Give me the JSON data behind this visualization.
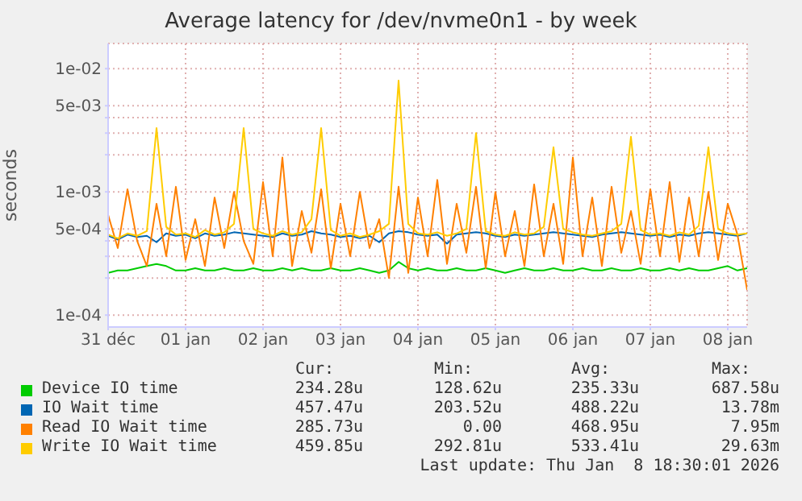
{
  "chart_data": {
    "type": "line",
    "title": "Average latency for /dev/nvme0n1 - by week",
    "ylabel": "seconds",
    "x": [
      "2025-12-31T12:00",
      "2025-12-31T15:00",
      "2025-12-31T18:00",
      "2025-12-31T21:00",
      "2026-01-01T00:00",
      "2026-01-01T03:00",
      "2026-01-01T06:00",
      "2026-01-01T09:00",
      "2026-01-01T12:00",
      "2026-01-01T15:00",
      "2026-01-01T18:00",
      "2026-01-01T21:00",
      "2026-01-02T00:00",
      "2026-01-02T03:00",
      "2026-01-02T06:00",
      "2026-01-02T09:00",
      "2026-01-02T12:00",
      "2026-01-02T15:00",
      "2026-01-02T18:00",
      "2026-01-02T21:00",
      "2026-01-03T00:00",
      "2026-01-03T03:00",
      "2026-01-03T06:00",
      "2026-01-03T09:00",
      "2026-01-03T12:00",
      "2026-01-03T15:00",
      "2026-01-03T18:00",
      "2026-01-03T21:00",
      "2026-01-04T00:00",
      "2026-01-04T03:00",
      "2026-01-04T06:00",
      "2026-01-04T09:00",
      "2026-01-04T12:00",
      "2026-01-04T15:00",
      "2026-01-04T18:00",
      "2026-01-04T21:00",
      "2026-01-05T00:00",
      "2026-01-05T03:00",
      "2026-01-05T06:00",
      "2026-01-05T09:00",
      "2026-01-05T12:00",
      "2026-01-05T15:00",
      "2026-01-05T18:00",
      "2026-01-05T21:00",
      "2026-01-06T00:00",
      "2026-01-06T03:00",
      "2026-01-06T06:00",
      "2026-01-06T09:00",
      "2026-01-06T12:00",
      "2026-01-06T15:00",
      "2026-01-06T18:00",
      "2026-01-06T21:00",
      "2026-01-07T00:00",
      "2026-01-07T03:00",
      "2026-01-07T06:00",
      "2026-01-07T09:00",
      "2026-01-07T12:00",
      "2026-01-07T15:00",
      "2026-01-07T18:00",
      "2026-01-07T21:00",
      "2026-01-08T00:00",
      "2026-01-08T03:00",
      "2026-01-08T06:00",
      "2026-01-08T09:00",
      "2026-01-08T12:00",
      "2026-01-08T15:00",
      "2026-01-08T18:00"
    ],
    "series": [
      {
        "name": "Device IO time",
        "color": "#00cc00",
        "values": [
          0.00022,
          0.00023,
          0.00023,
          0.00024,
          0.00025,
          0.00026,
          0.00025,
          0.00023,
          0.00023,
          0.00024,
          0.00023,
          0.00023,
          0.00024,
          0.00023,
          0.00023,
          0.00024,
          0.00023,
          0.00023,
          0.00024,
          0.00023,
          0.00024,
          0.00023,
          0.00023,
          0.00024,
          0.00023,
          0.00023,
          0.00024,
          0.00023,
          0.00022,
          0.00023,
          0.00027,
          0.00024,
          0.00023,
          0.00024,
          0.00023,
          0.00023,
          0.00024,
          0.00023,
          0.00023,
          0.00024,
          0.00023,
          0.00022,
          0.00023,
          0.00024,
          0.00023,
          0.00023,
          0.00024,
          0.00023,
          0.00023,
          0.00024,
          0.00023,
          0.00023,
          0.00024,
          0.00023,
          0.00023,
          0.00024,
          0.00023,
          0.00023,
          0.00024,
          0.00023,
          0.00024,
          0.00023,
          0.00023,
          0.00024,
          0.00025,
          0.00023,
          0.00024
        ]
      },
      {
        "name": "IO Wait time",
        "color": "#0066b3",
        "values": [
          0.00044,
          0.00041,
          0.00045,
          0.00043,
          0.00044,
          0.00039,
          0.00046,
          0.00044,
          0.00045,
          0.00042,
          0.00046,
          0.00044,
          0.00045,
          0.00047,
          0.00046,
          0.00045,
          0.00044,
          0.00043,
          0.00046,
          0.00044,
          0.00045,
          0.00048,
          0.00046,
          0.00045,
          0.00043,
          0.00044,
          0.00042,
          0.00044,
          0.00039,
          0.00046,
          0.00048,
          0.00047,
          0.00045,
          0.00044,
          0.00045,
          0.00038,
          0.00045,
          0.00046,
          0.00047,
          0.00046,
          0.00044,
          0.00043,
          0.00045,
          0.00044,
          0.00045,
          0.00046,
          0.00047,
          0.00046,
          0.00045,
          0.00044,
          0.00043,
          0.00045,
          0.00046,
          0.00047,
          0.00046,
          0.00045,
          0.00044,
          0.00045,
          0.00043,
          0.00045,
          0.00044,
          0.00046,
          0.00047,
          0.00046,
          0.00045,
          0.00044,
          0.00046
        ]
      },
      {
        "name": "Read IO Wait time",
        "color": "#ff8000",
        "values": [
          0.00065,
          0.00035,
          0.00105,
          0.0004,
          0.00025,
          0.0008,
          0.0003,
          0.0011,
          0.00028,
          0.0006,
          0.00025,
          0.0009,
          0.00035,
          0.001,
          0.0004,
          0.00026,
          0.0012,
          0.0003,
          0.0019,
          0.00025,
          0.0007,
          0.00032,
          0.00105,
          0.00024,
          0.0008,
          0.0003,
          0.001,
          0.00035,
          0.0006,
          0.0002,
          0.0011,
          0.00022,
          0.0009,
          0.0003,
          0.00125,
          0.00026,
          0.0008,
          0.00032,
          0.0011,
          0.00024,
          0.001,
          0.0003,
          0.0007,
          0.00025,
          0.00115,
          0.0003,
          0.0008,
          0.00026,
          0.0019,
          0.0003,
          0.0009,
          0.00025,
          0.0011,
          0.00032,
          0.0007,
          0.00026,
          0.00105,
          0.0003,
          0.0012,
          0.00027,
          0.0009,
          0.0003,
          0.001,
          0.00028,
          0.0008,
          0.00045,
          0.00016
        ]
      },
      {
        "name": "Write IO Wait time",
        "color": "#ffcc00",
        "values": [
          0.00045,
          0.00042,
          0.00046,
          0.00044,
          0.00048,
          0.0033,
          0.00052,
          0.00045,
          0.00046,
          0.00043,
          0.00049,
          0.00045,
          0.00047,
          0.00055,
          0.0033,
          0.0005,
          0.00046,
          0.00044,
          0.00048,
          0.00045,
          0.00047,
          0.0006,
          0.0033,
          0.00049,
          0.00044,
          0.00046,
          0.00043,
          0.00045,
          0.00048,
          0.00055,
          0.008,
          0.00055,
          0.00046,
          0.00045,
          0.00047,
          0.00044,
          0.00046,
          0.0005,
          0.003,
          0.00048,
          0.00045,
          0.00044,
          0.00047,
          0.00045,
          0.00046,
          0.00052,
          0.0023,
          0.0005,
          0.00047,
          0.00045,
          0.00044,
          0.00046,
          0.00048,
          0.00055,
          0.0028,
          0.00049,
          0.00045,
          0.00046,
          0.00044,
          0.00047,
          0.00045,
          0.00053,
          0.0023,
          0.0005,
          0.00046,
          0.00045,
          0.00046
        ]
      }
    ],
    "log": true,
    "ylim": [
      8e-05,
      0.016
    ],
    "yticks": [
      {
        "value": 0.0001,
        "label": "1e-04"
      },
      {
        "value": 0.0002,
        "label": null
      },
      {
        "value": 0.0003,
        "label": null
      },
      {
        "value": 0.0004,
        "label": null
      },
      {
        "value": 0.0005,
        "label": "5e-04"
      },
      {
        "value": 0.001,
        "label": "1e-03"
      },
      {
        "value": 0.002,
        "label": null
      },
      {
        "value": 0.003,
        "label": null
      },
      {
        "value": 0.004,
        "label": null
      },
      {
        "value": 0.005,
        "label": "5e-03"
      },
      {
        "value": 0.01,
        "label": "1e-02"
      }
    ],
    "xlim": [
      "2025-12-31T12:00",
      "2026-01-08T18:00"
    ],
    "xticks": [
      {
        "value": "2025-12-31T12:00",
        "label": "31 déc"
      },
      {
        "value": "2026-01-01T12:00",
        "label": "01 jan"
      },
      {
        "value": "2026-01-02T12:00",
        "label": "02 jan"
      },
      {
        "value": "2026-01-03T12:00",
        "label": "03 jan"
      },
      {
        "value": "2026-01-04T12:00",
        "label": "04 jan"
      },
      {
        "value": "2026-01-05T12:00",
        "label": "05 jan"
      },
      {
        "value": "2026-01-06T12:00",
        "label": "06 jan"
      },
      {
        "value": "2026-01-07T12:00",
        "label": "07 jan"
      },
      {
        "value": "2026-01-08T12:00",
        "label": "08 jan"
      }
    ],
    "grid": true,
    "legend": "bottom",
    "marker": "none",
    "line_style": "solid",
    "annotations": [
      "Cur:",
      "Min:",
      "Avg:",
      "Max:",
      "234.28u",
      "128.62u",
      "235.33u",
      "687.58u",
      "457.47u",
      "203.52u",
      "488.22u",
      "13.78m",
      "285.73u",
      "0.00",
      "468.95u",
      "7.95m",
      "459.85u",
      "292.81u",
      "533.41u",
      "29.63m",
      "Last update: Thu Jan  8 18:30:01 2026"
    ]
  }
}
